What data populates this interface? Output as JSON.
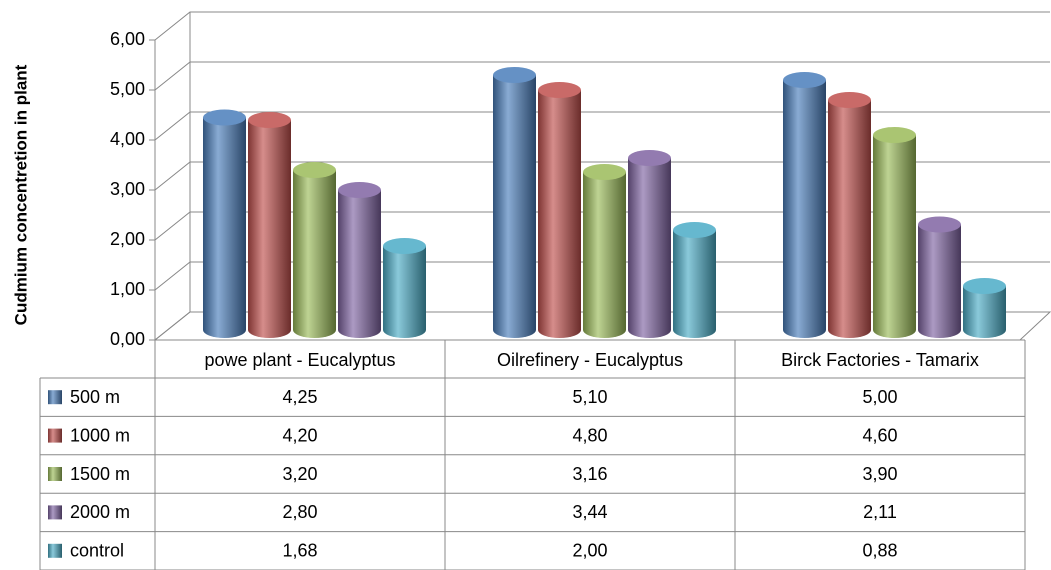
{
  "chart_data": {
    "type": "bar3d",
    "y_label": "Cudmium concentretion in plant",
    "categories": [
      "powe plant - Eucalyptus",
      "Oilrefinery - Eucalyptus",
      "Birck Factories - Tamarix"
    ],
    "series": [
      {
        "name": "500 m",
        "color": "#4a7ebb",
        "values": [
          4.25,
          5.1,
          5.0
        ],
        "value_labels": [
          "4,25",
          "5,10",
          "5,00"
        ]
      },
      {
        "name": "1000 m",
        "color": "#c0504d",
        "values": [
          4.2,
          4.8,
          4.6
        ],
        "value_labels": [
          "4,20",
          "4,80",
          "4,60"
        ]
      },
      {
        "name": "1500 m",
        "color": "#9bbb59",
        "values": [
          3.2,
          3.16,
          3.9
        ],
        "value_labels": [
          "3,20",
          "3,16",
          "3,90"
        ]
      },
      {
        "name": "2000 m",
        "color": "#8064a2",
        "values": [
          2.8,
          3.44,
          2.11
        ],
        "value_labels": [
          "2,80",
          "3,44",
          "2,11"
        ]
      },
      {
        "name": "control",
        "color": "#4bacc6",
        "values": [
          1.68,
          2.0,
          0.88
        ],
        "value_labels": [
          "1,68",
          "2,00",
          "0,88"
        ]
      }
    ],
    "ylim": [
      0,
      6
    ],
    "yticks": [
      {
        "value": 0,
        "label": "0,00"
      },
      {
        "value": 1,
        "label": "1,00"
      },
      {
        "value": 2,
        "label": "2,00"
      },
      {
        "value": 3,
        "label": "3,00"
      },
      {
        "value": 4,
        "label": "4,00"
      },
      {
        "value": 5,
        "label": "5,00"
      },
      {
        "value": 6,
        "label": "6,00"
      }
    ],
    "grid": true,
    "data_table": true
  }
}
